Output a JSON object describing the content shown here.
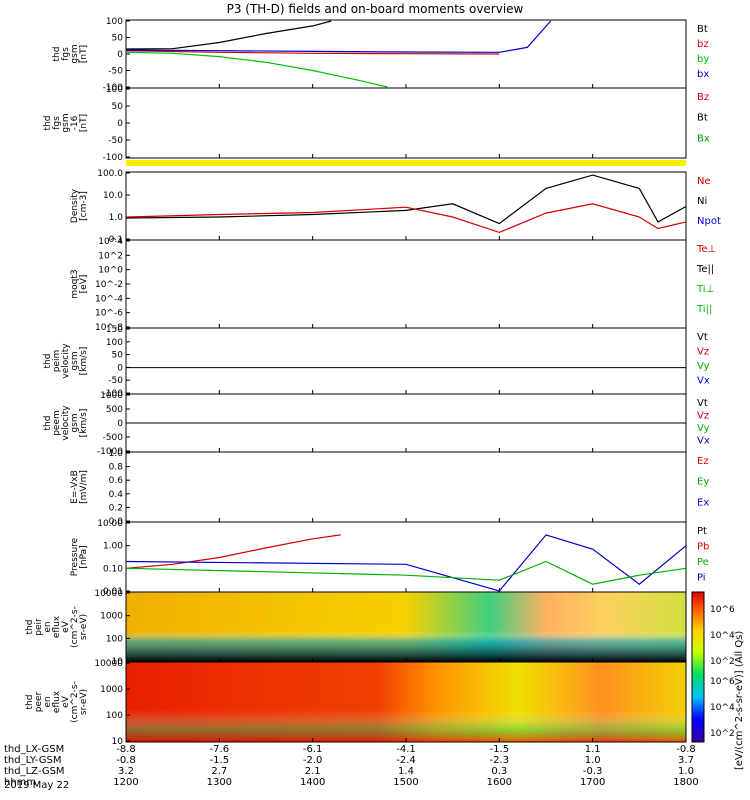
{
  "title": "P3 (TH-D) fields and on-board moments overview",
  "footer_date": "2019 May 22",
  "colorbar_label": "[eV/(cm^2-s-sr-eV)] (All Qs)",
  "colorbar_ticks": [
    "10^6",
    "10^4",
    "10^2"
  ],
  "x_axis": {
    "rows": [
      {
        "label": "thd_LX-GSM",
        "values": [
          "-8.8",
          "-7.6",
          "-6.1",
          "-4.1",
          "-1.5",
          "1.1",
          "-0.8"
        ]
      },
      {
        "label": "thd_LY-GSM",
        "values": [
          "-0.8",
          "-1.5",
          "-2.0",
          "-2.4",
          "-2.3",
          "1.0",
          "3.7"
        ]
      },
      {
        "label": "thd_LZ-GSM",
        "values": [
          "3.2",
          "2.7",
          "2.1",
          "1.4",
          "0.3",
          "-0.3",
          "1.0"
        ]
      },
      {
        "label": "hhmm",
        "values": [
          "1200",
          "1300",
          "1400",
          "1500",
          "1600",
          "1700",
          "1800"
        ]
      }
    ],
    "tick_hours": [
      12,
      13,
      14,
      15,
      16,
      17,
      18
    ]
  },
  "panels": [
    {
      "ylabel": [
        "thd",
        "fgs",
        "gsm",
        "[nT]"
      ],
      "ticks": [
        "100",
        "50",
        "0",
        "-50",
        "-100"
      ],
      "legend": [
        {
          "text": "Bt",
          "color": "#000000"
        },
        {
          "text": "bz",
          "color": "#d00000"
        },
        {
          "text": "by",
          "color": "#00c000"
        },
        {
          "text": "bx",
          "color": "#0000d0"
        }
      ]
    },
    {
      "ylabel": [
        "thd",
        "fgs",
        "gsm",
        "-16",
        "[nT]"
      ],
      "ticks": [
        "100",
        "50",
        "0",
        "-50",
        "-100"
      ],
      "legend": [
        {
          "text": "Bz",
          "color": "#d00000"
        },
        {
          "text": "Bt",
          "color": "#000000"
        },
        {
          "text": "Bx",
          "color": "#00a000"
        }
      ]
    },
    {
      "ylabel": [
        "Density",
        "[cm-3]"
      ],
      "ticks": [
        "100.0",
        "10.0",
        "1.0",
        "0.1"
      ],
      "legend": [
        {
          "text": "Ne",
          "color": "#d00000"
        },
        {
          "text": "Ni",
          "color": "#000000"
        },
        {
          "text": "Npot",
          "color": "#0000d0"
        }
      ]
    },
    {
      "ylabel": [
        "moqt3",
        "[eV]"
      ],
      "ticks": [
        "10^4",
        "10^2",
        "10^0",
        "10^-2",
        "10^-4",
        "10^-6",
        "10^-8"
      ],
      "legend": [
        {
          "text": "Te⊥",
          "color": "#d00000"
        },
        {
          "text": "Te||",
          "color": "#000000"
        },
        {
          "text": "Ti⊥",
          "color": "#00b000"
        },
        {
          "text": "Ti||",
          "color": "#00b000"
        }
      ]
    },
    {
      "ylabel": [
        "thd",
        "peim",
        "velocity",
        "gsm",
        "[km/s]"
      ],
      "ticks": [
        "150",
        "100",
        "50",
        "0",
        "-50",
        "-100"
      ],
      "legend": [
        {
          "text": "Vt",
          "color": "#000000"
        },
        {
          "text": "Vz",
          "color": "#d00000"
        },
        {
          "text": "Vy",
          "color": "#00b000"
        },
        {
          "text": "Vx",
          "color": "#0000d0"
        }
      ]
    },
    {
      "ylabel": [
        "thd",
        "peem",
        "velocity",
        "gsm",
        "[km/s]"
      ],
      "ticks": [
        "1000",
        "500",
        "0",
        "-500",
        "-1000"
      ],
      "legend": [
        {
          "text": "Vt",
          "color": "#000000"
        },
        {
          "text": "Vz",
          "color": "#d00000"
        },
        {
          "text": "Vy",
          "color": "#00b000"
        },
        {
          "text": "Vx",
          "color": "#0000d0"
        }
      ]
    },
    {
      "ylabel": [
        "E=-VxB",
        "[mV/m]"
      ],
      "ticks": [
        "1.0",
        "0.8",
        "0.6",
        "0.4",
        "0.2",
        "0.0"
      ],
      "legend": [
        {
          "text": "Ez",
          "color": "#d00000"
        },
        {
          "text": "Ey",
          "color": "#00b000"
        },
        {
          "text": "Ex",
          "color": "#0000d0"
        }
      ]
    },
    {
      "ylabel": [
        "Pressure",
        "[nPa]"
      ],
      "ticks": [
        "10.00",
        "1.00",
        "0.10",
        "0.01"
      ],
      "legend": [
        {
          "text": "Pt",
          "color": "#000000"
        },
        {
          "text": "Pb",
          "color": "#d00000"
        },
        {
          "text": "Pe",
          "color": "#00b000"
        },
        {
          "text": "Pi",
          "color": "#0000d0"
        }
      ]
    },
    {
      "ylabel": [
        "thd",
        "peir",
        "en",
        "eflux",
        "eV",
        "(cm^2-s-",
        "sr-eV)"
      ],
      "ticks": [
        "10000",
        "1000",
        "100",
        "10"
      ],
      "legend": []
    },
    {
      "ylabel": [
        "thd",
        "peer",
        "en",
        "eflux",
        "eV",
        "(cm^2-s-",
        "sr-eV)"
      ],
      "ticks": [
        "10000",
        "1000",
        "100",
        "10"
      ],
      "legend": []
    }
  ],
  "chart_data": {
    "type": "line",
    "title": "P3 (TH-D) fields and on-board moments overview",
    "x_range_hours": [
      12,
      18
    ],
    "series": [
      {
        "name": "Bt",
        "panel": 1,
        "x": [
          12,
          12.5,
          13,
          13.5,
          14,
          14.2
        ],
        "y": [
          15,
          16,
          35,
          62,
          85,
          100
        ]
      },
      {
        "name": "bz",
        "panel": 1,
        "x": [
          12,
          13,
          14,
          15,
          16
        ],
        "y": [
          10,
          5,
          2,
          1,
          0
        ]
      },
      {
        "name": "by",
        "panel": 1,
        "x": [
          12,
          12.5,
          13,
          13.5,
          14,
          14.5,
          14.8
        ],
        "y": [
          5,
          2,
          -8,
          -25,
          -50,
          -80,
          -100
        ]
      },
      {
        "name": "bx",
        "panel": 1,
        "x": [
          12,
          13,
          14,
          15,
          16,
          16.3,
          16.55
        ],
        "y": [
          12,
          10,
          8,
          6,
          5,
          20,
          100
        ]
      },
      {
        "name": "Ni",
        "panel": 3,
        "x": [
          12,
          13,
          14,
          15,
          15.5,
          16,
          16.5,
          17,
          17.5,
          17.7,
          18
        ],
        "y": [
          0.9,
          1.0,
          1.3,
          2.0,
          4.0,
          0.5,
          20,
          80,
          20,
          0.6,
          3
        ]
      },
      {
        "name": "Ne",
        "panel": 3,
        "x": [
          12,
          13,
          14,
          15,
          15.5,
          16,
          16.5,
          17,
          17.5,
          17.7,
          18
        ],
        "y": [
          1.0,
          1.3,
          1.6,
          2.8,
          1.0,
          0.2,
          1.5,
          4.0,
          1.0,
          0.3,
          0.6
        ]
      },
      {
        "name": "Pb",
        "panel": 8,
        "x": [
          12,
          12.5,
          13,
          13.5,
          14,
          14.3
        ],
        "y": [
          0.1,
          0.15,
          0.3,
          0.8,
          2.0,
          3.0
        ]
      },
      {
        "name": "Pi",
        "panel": 8,
        "x": [
          12,
          15,
          16,
          16.5,
          17,
          17.5,
          18
        ],
        "y": [
          0.2,
          0.15,
          0.01,
          3.0,
          0.7,
          0.02,
          1.0
        ]
      },
      {
        "name": "Pe",
        "panel": 8,
        "x": [
          12,
          15,
          16,
          16.5,
          17,
          17.5,
          18
        ],
        "y": [
          0.1,
          0.05,
          0.03,
          0.2,
          0.02,
          0.05,
          0.1
        ]
      }
    ]
  }
}
